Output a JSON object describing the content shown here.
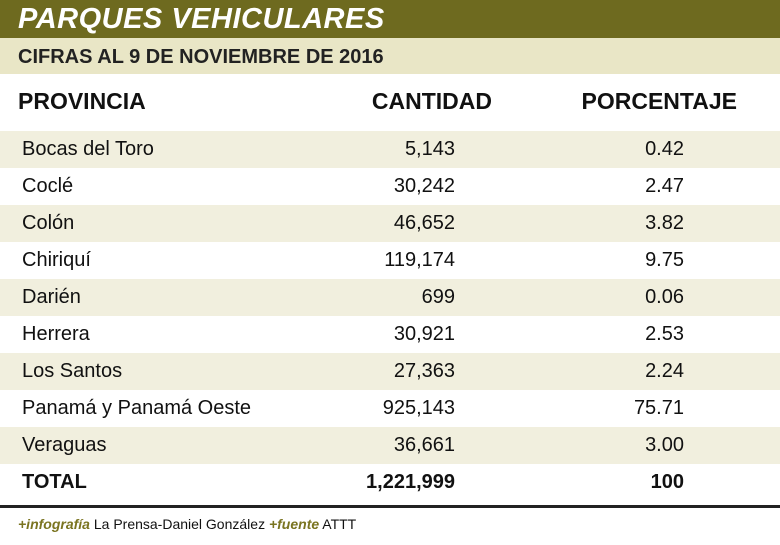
{
  "header": {
    "title": "PARQUES VEHICULARES",
    "subtitle": "CIFRAS AL 9 DE NOVIEMBRE DE 2016"
  },
  "table": {
    "columns": [
      "PROVINCIA",
      "CANTIDAD",
      "PORCENTAJE"
    ],
    "rows": [
      [
        "Bocas del Toro",
        "5,143",
        "0.42"
      ],
      [
        "Coclé",
        "30,242",
        "2.47"
      ],
      [
        "Colón",
        "46,652",
        "3.82"
      ],
      [
        "Chiriquí",
        "119,174",
        "9.75"
      ],
      [
        "Darién",
        "699",
        "0.06"
      ],
      [
        "Herrera",
        "30,921",
        "2.53"
      ],
      [
        "Los Santos",
        "27,363",
        "2.24"
      ],
      [
        "Panamá y Panamá Oeste",
        "925,143",
        "75.71"
      ],
      [
        "Veraguas",
        "36,661",
        "3.00"
      ],
      [
        "TOTAL",
        "1,221,999",
        "100"
      ]
    ]
  },
  "footer": {
    "credit_label": "+infografía",
    "credit": "La Prensa-Daniel González",
    "source_label": "+fuente",
    "source": "ATTT"
  }
}
